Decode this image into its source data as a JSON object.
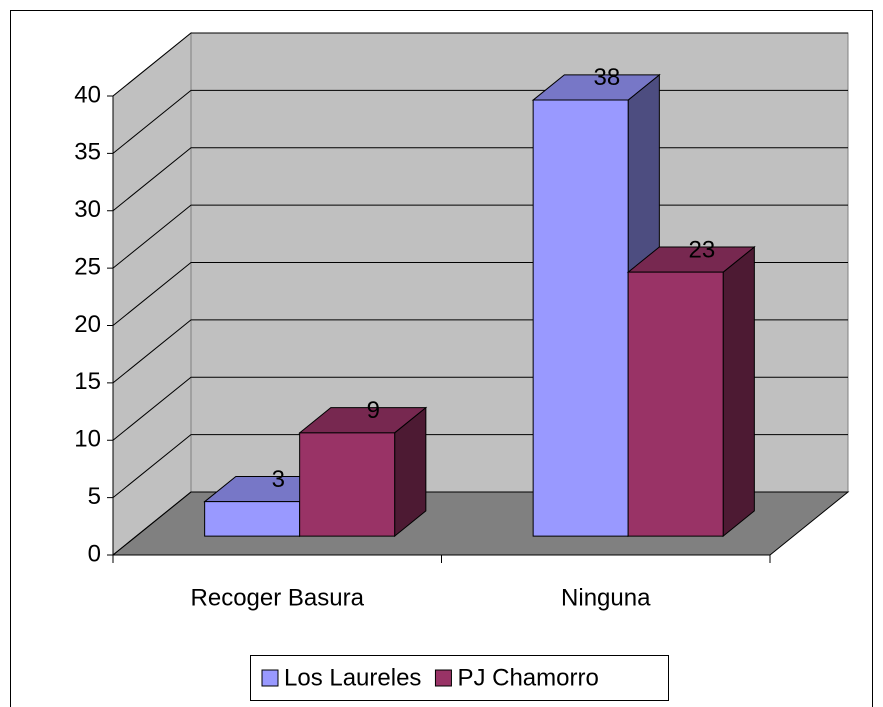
{
  "chart_data": {
    "type": "bar3d",
    "categories": [
      "Recoger Basura",
      "Ninguna"
    ],
    "series": [
      {
        "name": "Los Laureles",
        "color": "#9999ff",
        "values": [
          3,
          38
        ]
      },
      {
        "name": "PJ Chamorro",
        "color": "#993366",
        "values": [
          9,
          23
        ]
      }
    ],
    "ylim": [
      0,
      40
    ],
    "yticks": [
      0,
      5,
      10,
      15,
      20,
      25,
      30,
      35,
      40
    ],
    "grid": true,
    "legend": "bottom",
    "value_labels_shown": true
  }
}
